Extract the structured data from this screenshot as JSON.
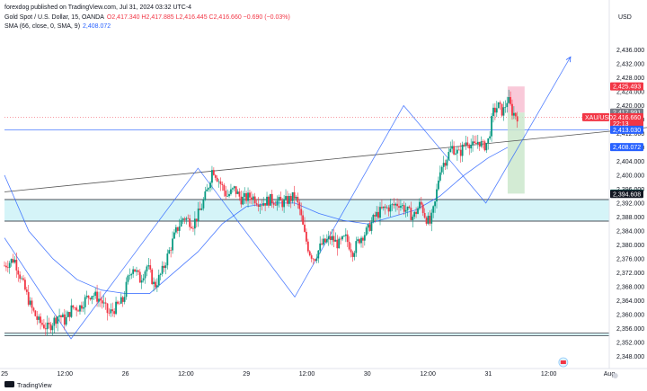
{
  "header": {
    "published_line": "forexdog published on TradingView.com, Jul 31, 2024 03:32 UTC-4",
    "symbol_line": "Gold Spot / U.S. Dollar, 15, OANDA",
    "ohlc": "O2,417.340  H2,417.885  L2,416.445  C2,416.660  −0.690 (−0.03%)",
    "sma_line_label": "SMA (66, close, 0, SMA, 9)",
    "sma_value": "2,408.072"
  },
  "footer": {
    "logo_text": "TradingView"
  },
  "colors": {
    "up": "#089981",
    "down": "#f23645",
    "sma": "#2962ff",
    "zone": "#b2ebf2",
    "stop_zone": "#f8bbd0",
    "target_zone": "#c8e6c9"
  },
  "chart_data": {
    "type": "candlestick",
    "title": "Gold Spot / U.S. Dollar, 15, OANDA",
    "currency": "USD",
    "ylim": [
      2346,
      2440
    ],
    "y_ticks": [
      2436,
      2432,
      2428,
      2424,
      2420,
      2416,
      2412,
      2408,
      2404,
      2400,
      2396,
      2392,
      2388,
      2384,
      2380,
      2376,
      2372,
      2368,
      2364,
      2360,
      2356,
      2352,
      2348
    ],
    "x_ticks": [
      {
        "label": "25",
        "t": 0
      },
      {
        "label": "12:00",
        "t": 0.5
      },
      {
        "label": "26",
        "t": 1
      },
      {
        "label": "12:00",
        "t": 1.5
      },
      {
        "label": "29",
        "t": 2
      },
      {
        "label": "12:00",
        "t": 2.5
      },
      {
        "label": "30",
        "t": 3
      },
      {
        "label": "12:00",
        "t": 3.5
      },
      {
        "label": "31",
        "t": 4
      },
      {
        "label": "12:00",
        "t": 4.5
      },
      {
        "label": "Aug",
        "t": 5
      }
    ],
    "price_path": [
      [
        0.0,
        2374
      ],
      [
        0.08,
        2376
      ],
      [
        0.14,
        2370
      ],
      [
        0.18,
        2366
      ],
      [
        0.22,
        2362
      ],
      [
        0.28,
        2358
      ],
      [
        0.36,
        2356
      ],
      [
        0.45,
        2360
      ],
      [
        0.5,
        2358
      ],
      [
        0.56,
        2362
      ],
      [
        0.62,
        2362
      ],
      [
        0.66,
        2364
      ],
      [
        0.72,
        2366
      ],
      [
        0.8,
        2364
      ],
      [
        0.86,
        2360
      ],
      [
        0.92,
        2362
      ],
      [
        0.98,
        2364
      ],
      [
        1.02,
        2370
      ],
      [
        1.06,
        2374
      ],
      [
        1.12,
        2370
      ],
      [
        1.18,
        2374
      ],
      [
        1.24,
        2368
      ],
      [
        1.3,
        2372
      ],
      [
        1.36,
        2378
      ],
      [
        1.42,
        2384
      ],
      [
        1.48,
        2388
      ],
      [
        1.56,
        2386
      ],
      [
        1.62,
        2390
      ],
      [
        1.68,
        2396
      ],
      [
        1.72,
        2402
      ],
      [
        1.78,
        2398
      ],
      [
        1.84,
        2394
      ],
      [
        1.9,
        2396
      ],
      [
        1.96,
        2393
      ],
      [
        2.04,
        2394
      ],
      [
        2.12,
        2392
      ],
      [
        2.2,
        2393
      ],
      [
        2.3,
        2392
      ],
      [
        2.4,
        2394
      ],
      [
        2.44,
        2390
      ],
      [
        2.48,
        2383
      ],
      [
        2.52,
        2378
      ],
      [
        2.56,
        2376
      ],
      [
        2.62,
        2380
      ],
      [
        2.7,
        2382
      ],
      [
        2.76,
        2380
      ],
      [
        2.82,
        2382
      ],
      [
        2.88,
        2378
      ],
      [
        2.94,
        2382
      ],
      [
        3.0,
        2384
      ],
      [
        3.06,
        2388
      ],
      [
        3.12,
        2390
      ],
      [
        3.2,
        2391
      ],
      [
        3.26,
        2392
      ],
      [
        3.32,
        2390
      ],
      [
        3.38,
        2388
      ],
      [
        3.44,
        2392
      ],
      [
        3.48,
        2388
      ],
      [
        3.52,
        2386
      ],
      [
        3.56,
        2392
      ],
      [
        3.6,
        2402
      ],
      [
        3.64,
        2404
      ],
      [
        3.7,
        2408
      ],
      [
        3.76,
        2406
      ],
      [
        3.82,
        2410
      ],
      [
        3.88,
        2408
      ],
      [
        3.92,
        2410
      ],
      [
        3.96,
        2408
      ],
      [
        4.0,
        2410
      ],
      [
        4.04,
        2418
      ],
      [
        4.08,
        2420
      ],
      [
        4.12,
        2418
      ],
      [
        4.16,
        2422
      ],
      [
        4.2,
        2418
      ],
      [
        4.24,
        2417
      ]
    ],
    "sma_path": [
      [
        0.0,
        2400
      ],
      [
        0.2,
        2384
      ],
      [
        0.4,
        2376
      ],
      [
        0.6,
        2370
      ],
      [
        0.8,
        2367
      ],
      [
        1.0,
        2366
      ],
      [
        1.2,
        2366
      ],
      [
        1.4,
        2372
      ],
      [
        1.6,
        2378
      ],
      [
        1.8,
        2386
      ],
      [
        2.0,
        2391
      ],
      [
        2.2,
        2392
      ],
      [
        2.4,
        2392
      ],
      [
        2.6,
        2389
      ],
      [
        2.8,
        2387
      ],
      [
        3.0,
        2386
      ],
      [
        3.2,
        2388
      ],
      [
        3.4,
        2390
      ],
      [
        3.6,
        2394
      ],
      [
        3.8,
        2400
      ],
      [
        4.0,
        2405
      ],
      [
        4.16,
        2408
      ]
    ],
    "zigzag_path": [
      [
        0.0,
        2382
      ],
      [
        0.55,
        2353
      ],
      [
        1.6,
        2402
      ],
      [
        2.4,
        2365
      ],
      [
        3.3,
        2420
      ],
      [
        3.98,
        2392
      ],
      [
        4.68,
        2434
      ]
    ],
    "levels": [
      {
        "name": "zone-top",
        "value": 2393.0
      },
      {
        "name": "zone-bottom",
        "value": 2386.8
      },
      {
        "name": "support-top",
        "value": 2354.6
      },
      {
        "name": "support-bottom",
        "value": 2353.9
      },
      {
        "name": "resistance",
        "value": 2413.03
      },
      {
        "name": "red-line",
        "value": 2416.66
      }
    ],
    "trendline": [
      [
        0.0,
        2395.2
      ],
      [
        5.4,
        2414.0
      ]
    ],
    "position": {
      "t_start": 4.16,
      "t_end": 4.3,
      "entry": 2417.991,
      "stop": 2425.493,
      "target": 2394.705
    },
    "price_tags": [
      {
        "label": "2,425.493",
        "value": 2425.493,
        "kind": "stop"
      },
      {
        "label": "2,417.991",
        "value": 2417.991,
        "kind": "entry"
      },
      {
        "label": "2,416.660",
        "value": 2416.66,
        "kind": "last"
      },
      {
        "label": "22:13",
        "value": 2414.8,
        "kind": "last-time"
      },
      {
        "label": "2,413.030",
        "value": 2413.03,
        "kind": "level"
      },
      {
        "label": "2,408.072",
        "value": 2408.072,
        "kind": "sma"
      },
      {
        "label": "2,394.705",
        "value": 2394.705,
        "kind": "target"
      },
      {
        "label": "2,394.608",
        "value": 2394.608,
        "kind": "zone"
      }
    ],
    "symbol_tag": "XAU/USD"
  }
}
